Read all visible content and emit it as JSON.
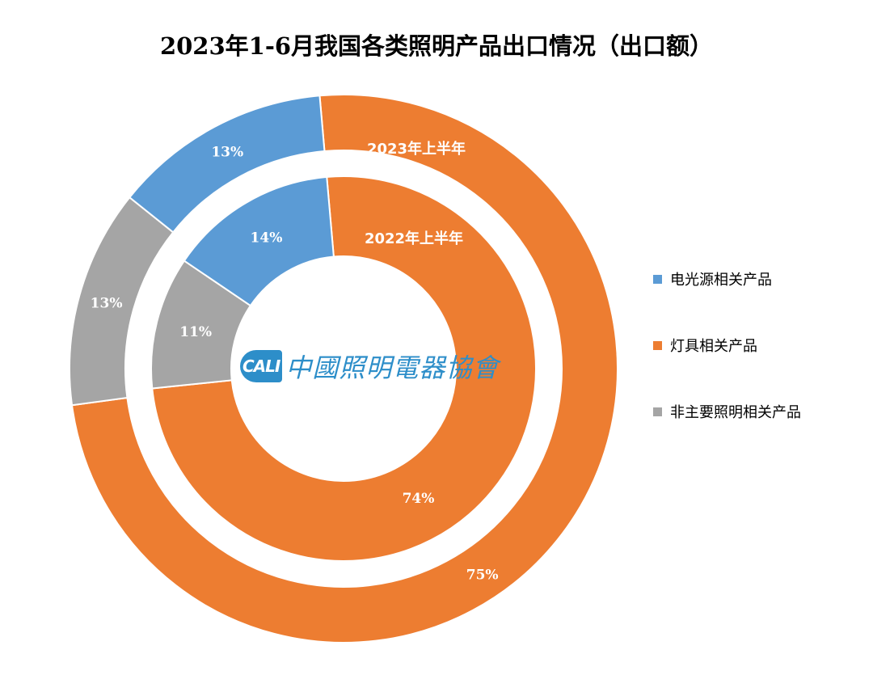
{
  "chart_data": {
    "type": "doughnut",
    "title": "2023年1-6月我国各类照明产品出口情况（出口额）",
    "categories": [
      "电光源相关产品",
      "灯具相关产品",
      "非主要照明相关产品"
    ],
    "colors": [
      "#5b9bd5",
      "#ed7d31",
      "#a5a5a5"
    ],
    "series": [
      {
        "name": "2023年上半年",
        "ring": "outer",
        "values": [
          13,
          75,
          13
        ],
        "labels": [
          "13%",
          "75%",
          "13%"
        ]
      },
      {
        "name": "2022年上半年",
        "ring": "inner",
        "values": [
          14,
          74,
          11
        ],
        "labels": [
          "14%",
          "74%",
          "11%"
        ]
      }
    ],
    "legend_position": "right"
  },
  "logo": {
    "mark": "CALI",
    "text": "中國照明電器協會"
  }
}
